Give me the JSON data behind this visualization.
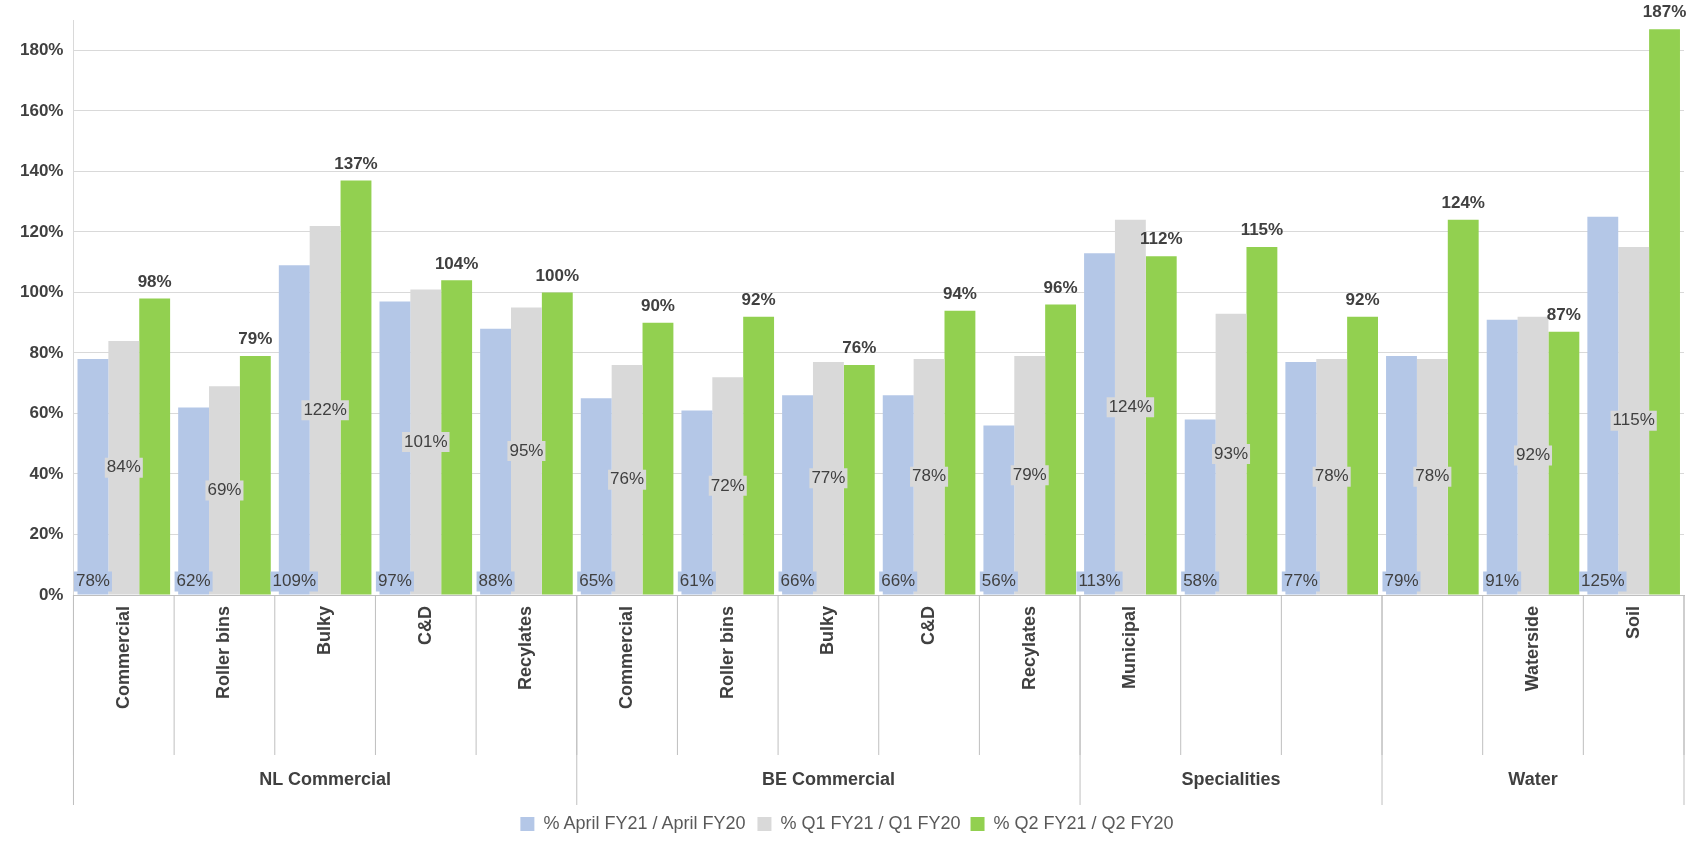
{
  "chart_data": {
    "type": "bar",
    "categories": [
      "Commercial",
      "Roller bins",
      "Bulky",
      "C&D",
      "Recylates",
      "Commercial",
      "Roller bins",
      "Bulky",
      "C&D",
      "Recylates",
      "Municipal",
      null,
      null,
      null,
      "Waterside",
      "Soil"
    ],
    "series": [
      {
        "name": "% April FY21 / April FY20",
        "color": "#b4c7e7",
        "values": [
          78,
          62,
          109,
          97,
          88,
          65,
          61,
          66,
          66,
          56,
          113,
          58,
          77,
          79,
          91,
          125
        ],
        "value_labels": [
          "78%",
          "62%",
          "109%",
          "97%",
          "88%",
          "65%",
          "61%",
          "66%",
          "66%",
          "56%",
          "113%",
          "58%",
          "77%",
          "79%",
          "91%",
          "125%"
        ]
      },
      {
        "name": "% Q1 FY21 / Q1 FY20",
        "color": "#d9d9d9",
        "values": [
          84,
          69,
          122,
          101,
          95,
          76,
          72,
          77,
          78,
          79,
          124,
          93,
          78,
          78,
          92,
          115
        ],
        "value_labels": [
          "84%",
          "69%",
          "122%",
          "101%",
          "95%",
          "76%",
          "72%",
          "77%",
          "78%",
          "79%",
          "124%",
          "93%",
          "78%",
          "78%",
          "92%",
          "115%"
        ]
      },
      {
        "name": "% Q2 FY21 / Q2 FY20",
        "color": "#92d050",
        "values": [
          98,
          79,
          137,
          104,
          100,
          90,
          92,
          76,
          94,
          96,
          112,
          115,
          92,
          124,
          87,
          187
        ],
        "value_labels": [
          "98%",
          "79%",
          "137%",
          "104%",
          "100%",
          "90%",
          "92%",
          "76%",
          "94%",
          "96%",
          "112%",
          "115%",
          "92%",
          "124%",
          "87%",
          "187%"
        ]
      }
    ],
    "annotations": [
      "NL Commercial",
      "BE Commercial",
      "Specialities",
      "Water"
    ],
    "ylim": [
      0,
      190
    ],
    "yticks": [
      {
        "value": 0,
        "label": "0%"
      },
      {
        "value": 20,
        "label": "20%"
      },
      {
        "value": 40,
        "label": "40%"
      },
      {
        "value": 60,
        "label": "60%"
      },
      {
        "value": 80,
        "label": "80%"
      },
      {
        "value": 100,
        "label": "100%"
      },
      {
        "value": 120,
        "label": "120%"
      },
      {
        "value": 140,
        "label": "140%"
      },
      {
        "value": 160,
        "label": "160%"
      },
      {
        "value": 180,
        "label": "180%"
      }
    ],
    "grid": "y",
    "legend": "bottom"
  }
}
